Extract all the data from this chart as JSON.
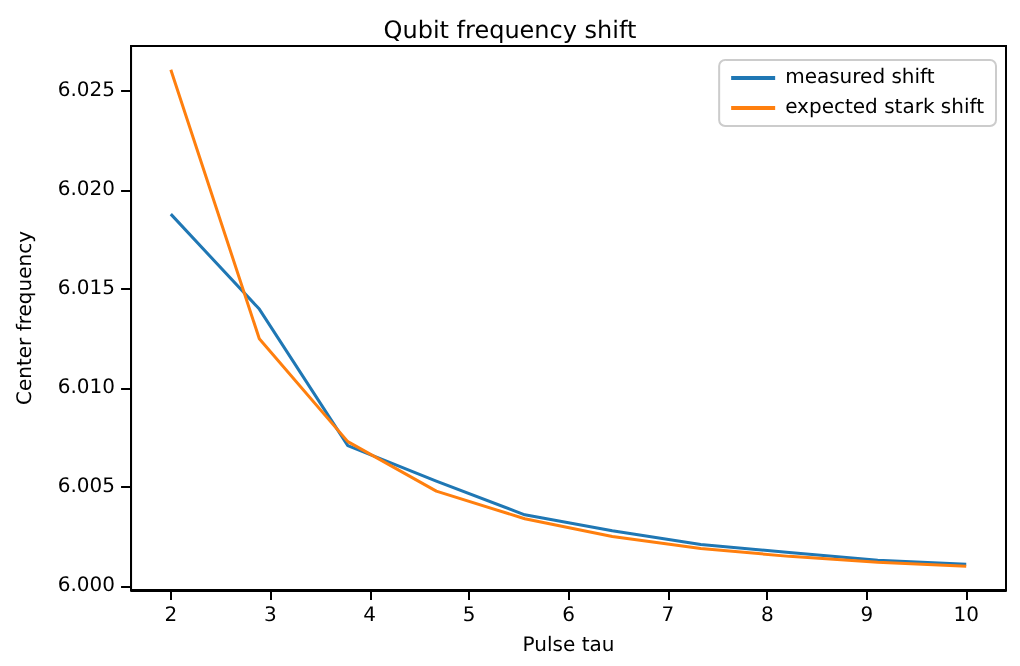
{
  "chart_data": {
    "type": "line",
    "title": "Qubit frequency shift",
    "xlabel": "Pulse tau",
    "ylabel": "Center frequency",
    "x": [
      2,
      2.89,
      3.78,
      4.67,
      5.56,
      6.44,
      7.33,
      8.22,
      9.11,
      10
    ],
    "series": [
      {
        "name": "measured shift",
        "color": "#1f77b4",
        "values": [
          6.0188,
          6.014,
          6.0071,
          6.0053,
          6.0036,
          6.0028,
          6.0021,
          6.0017,
          6.0013,
          6.0011
        ]
      },
      {
        "name": "expected stark shift",
        "color": "#ff7f0e",
        "values": [
          6.0261,
          6.0125,
          6.0073,
          6.0048,
          6.0034,
          6.0025,
          6.0019,
          6.0015,
          6.0012,
          6.001
        ]
      }
    ],
    "xlim": [
      1.6,
      10.4
    ],
    "xticks": [
      2,
      3,
      4,
      5,
      6,
      7,
      8,
      9,
      10
    ],
    "ylim": [
      5.9998,
      6.0273
    ],
    "yticks": [
      {
        "value": 6.0,
        "label": "6.000"
      },
      {
        "value": 6.005,
        "label": "6.005"
      },
      {
        "value": 6.01,
        "label": "6.010"
      },
      {
        "value": 6.015,
        "label": "6.015"
      },
      {
        "value": 6.02,
        "label": "6.020"
      },
      {
        "value": 6.025,
        "label": "6.025"
      }
    ],
    "grid": false,
    "legend": "top right",
    "marker": "none",
    "line_style": "solid"
  }
}
